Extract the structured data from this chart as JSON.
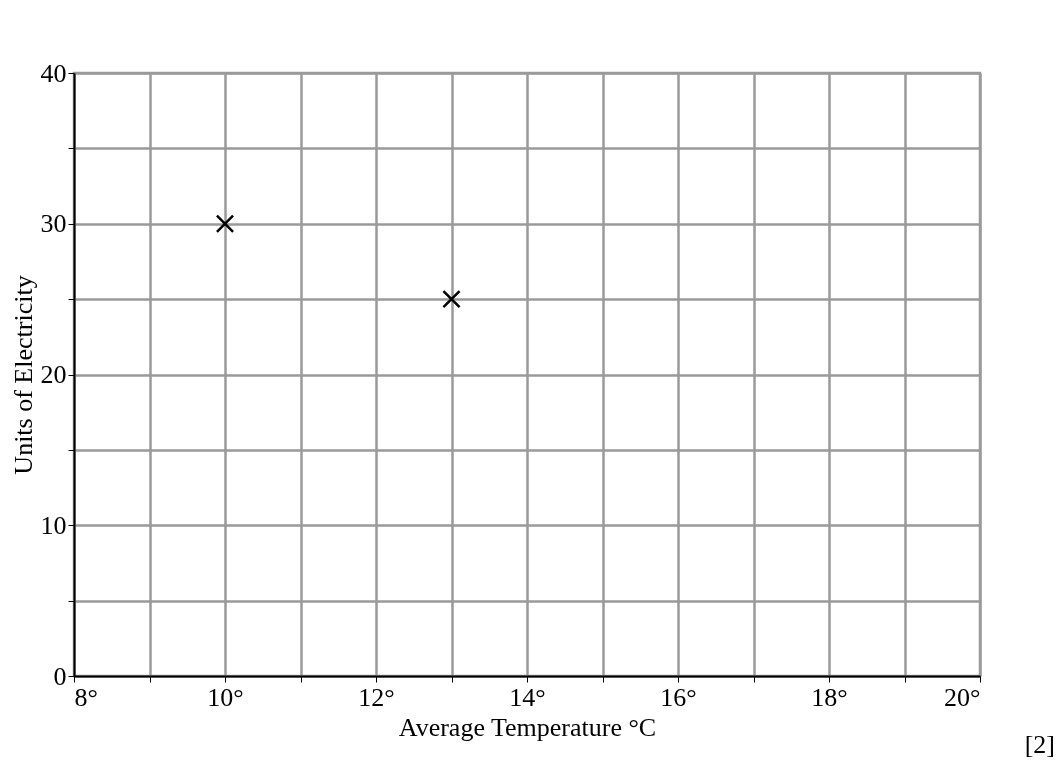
{
  "chart_data": {
    "type": "scatter",
    "xlabel": "Average Temperature °C",
    "ylabel": "Units of Electricity",
    "x": [
      10,
      13
    ],
    "values": [
      30,
      25
    ],
    "color": "#000000",
    "marker": "cross",
    "grid": true,
    "xlim": [
      8,
      20
    ],
    "ylim": [
      0,
      40
    ],
    "xticks": [
      {
        "value": 8,
        "label": "8°"
      },
      {
        "value": 9,
        "label": null
      },
      {
        "value": 10,
        "label": "10°"
      },
      {
        "value": 11,
        "label": null
      },
      {
        "value": 12,
        "label": "12°"
      },
      {
        "value": 13,
        "label": null
      },
      {
        "value": 14,
        "label": "14°"
      },
      {
        "value": 15,
        "label": null
      },
      {
        "value": 16,
        "label": "16°"
      },
      {
        "value": 17,
        "label": null
      },
      {
        "value": 18,
        "label": "18°"
      },
      {
        "value": 19,
        "label": null
      },
      {
        "value": 20,
        "label": "20°"
      }
    ],
    "yticks": [
      0,
      {
        "value": 5,
        "label": null
      },
      10,
      {
        "value": 15,
        "label": null
      },
      20,
      {
        "value": 25,
        "label": null
      },
      30,
      {
        "value": 35,
        "label": null
      },
      40
    ],
    "annotations": [
      "[2]"
    ]
  }
}
